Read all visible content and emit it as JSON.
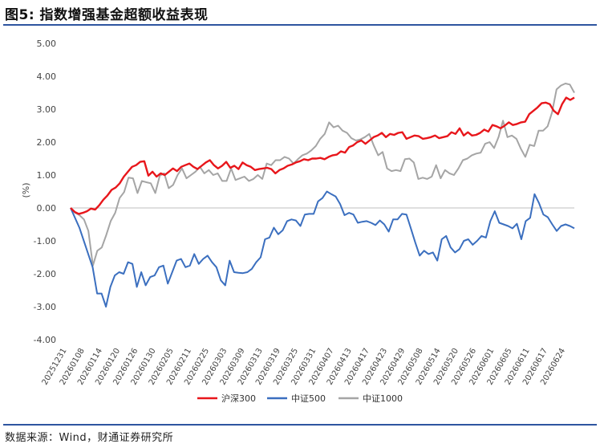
{
  "title": "图5: 指数增强基金超额收益表现",
  "source": "数据来源：Wind，财通证券研究所",
  "chart_data": {
    "type": "line",
    "ylabel": "(%)",
    "ylim": [
      -4,
      5
    ],
    "yticks": [
      5,
      4,
      3,
      2,
      1,
      0,
      -1,
      -2,
      -3,
      -4
    ],
    "ytick_labels": [
      "5.00",
      "4.00",
      "3.00",
      "2.00",
      "1.00",
      "0.00",
      "-1.00",
      "-2.00",
      "-3.00",
      "-4.00"
    ],
    "grid": false,
    "legend_position": "bottom-center",
    "x_tick_labels": [
      "20251231",
      "20260108",
      "20260114",
      "20260120",
      "20260126",
      "20260130",
      "20260205",
      "20260211",
      "20260225",
      "20260303",
      "20260309",
      "20260313",
      "20260319",
      "20260325",
      "20260331",
      "20260407",
      "20260413",
      "20260417",
      "20260423",
      "20260429",
      "20260508",
      "20260514",
      "20260520",
      "20260526",
      "20260601",
      "20260605",
      "20260611",
      "20260617",
      "20260624"
    ],
    "series": [
      {
        "name": "沪深300",
        "color": "#e8161b",
        "values": [
          0,
          -0.12,
          -0.18,
          -0.15,
          -0.1,
          -0.02,
          -0.05,
          0.08,
          0.25,
          0.38,
          0.55,
          0.62,
          0.75,
          0.95,
          1.1,
          1.25,
          1.3,
          1.4,
          1.42,
          0.98,
          1.1,
          0.95,
          1.05,
          1.0,
          1.1,
          1.2,
          1.12,
          1.25,
          1.3,
          1.35,
          1.25,
          1.18,
          1.28,
          1.38,
          1.45,
          1.3,
          1.2,
          1.28,
          1.4,
          1.22,
          1.28,
          1.18,
          1.38,
          1.3,
          1.25,
          1.15,
          1.18,
          1.2,
          1.22,
          1.18,
          1.05,
          1.15,
          1.2,
          1.28,
          1.32,
          1.38,
          1.42,
          1.48,
          1.45,
          1.5,
          1.5,
          1.52,
          1.48,
          1.55,
          1.6,
          1.62,
          1.72,
          1.68,
          1.85,
          1.9,
          2.0,
          2.05,
          1.95,
          2.05,
          2.15,
          2.2,
          2.28,
          2.15,
          2.25,
          2.22,
          2.28,
          2.3,
          2.1,
          2.15,
          2.2,
          2.18,
          2.1,
          2.12,
          2.15,
          2.2,
          2.12,
          2.15,
          2.18,
          2.3,
          2.25,
          2.42,
          2.2,
          2.3,
          2.2,
          2.22,
          2.28,
          2.38,
          2.32,
          2.52,
          2.48,
          2.42,
          2.5,
          2.6,
          2.52,
          2.55,
          2.6,
          2.62,
          2.85,
          2.95,
          3.05,
          3.18,
          3.2,
          3.15,
          2.95,
          2.85,
          3.15,
          3.35,
          3.28,
          3.35
        ]
      },
      {
        "name": "中证500",
        "color": "#3b6fbf",
        "values": [
          0,
          -0.3,
          -0.6,
          -1.0,
          -1.4,
          -1.8,
          -2.6,
          -2.6,
          -3.0,
          -2.4,
          -2.05,
          -1.95,
          -2.0,
          -1.65,
          -1.7,
          -2.4,
          -1.95,
          -2.35,
          -2.1,
          -2.05,
          -1.8,
          -1.75,
          -2.3,
          -1.95,
          -1.6,
          -1.55,
          -1.8,
          -1.75,
          -1.4,
          -1.7,
          -1.55,
          -1.45,
          -1.65,
          -1.8,
          -2.2,
          -2.35,
          -1.6,
          -1.95,
          -1.97,
          -1.98,
          -1.95,
          -1.85,
          -1.65,
          -1.5,
          -0.95,
          -0.9,
          -0.6,
          -0.8,
          -0.68,
          -0.4,
          -0.35,
          -0.38,
          -0.55,
          -0.2,
          -0.18,
          -0.18,
          0.2,
          0.3,
          0.5,
          0.42,
          0.35,
          0.12,
          -0.22,
          -0.15,
          -0.2,
          -0.45,
          -0.42,
          -0.4,
          -0.45,
          -0.52,
          -0.38,
          -0.5,
          -0.72,
          -0.35,
          -0.35,
          -0.18,
          -0.2,
          -0.62,
          -1.05,
          -1.45,
          -1.3,
          -1.4,
          -1.35,
          -1.6,
          -0.95,
          -0.85,
          -1.2,
          -1.35,
          -1.25,
          -1.0,
          -0.95,
          -1.12,
          -1.0,
          -0.85,
          -0.9,
          -0.4,
          -0.1,
          -0.45,
          -0.5,
          -0.55,
          -0.62,
          -0.48,
          -0.95,
          -0.4,
          -0.3,
          0.42,
          0.15,
          -0.2,
          -0.28,
          -0.5,
          -0.7,
          -0.55,
          -0.5,
          -0.55,
          -0.62
        ]
      },
      {
        "name": "中证1000",
        "color": "#a5a5a5",
        "values": [
          0,
          -0.15,
          -0.22,
          -0.35,
          -0.7,
          -1.75,
          -1.3,
          -1.2,
          -0.82,
          -0.4,
          -0.15,
          0.3,
          0.48,
          0.92,
          0.9,
          0.45,
          0.82,
          0.78,
          0.75,
          0.45,
          0.98,
          1.05,
          0.6,
          0.7,
          1.0,
          1.2,
          0.9,
          1.0,
          1.1,
          1.25,
          1.05,
          1.15,
          1.0,
          1.05,
          0.82,
          0.82,
          1.2,
          0.85,
          0.9,
          0.95,
          0.82,
          0.88,
          1.0,
          0.88,
          1.35,
          1.3,
          1.45,
          1.45,
          1.55,
          1.5,
          1.35,
          1.48,
          1.6,
          1.65,
          1.75,
          1.88,
          2.1,
          2.25,
          2.6,
          2.45,
          2.5,
          2.35,
          2.28,
          2.12,
          2.05,
          2.08,
          2.15,
          2.25,
          1.9,
          1.6,
          1.7,
          1.2,
          1.12,
          1.15,
          1.12,
          1.48,
          1.5,
          1.38,
          0.88,
          0.92,
          0.88,
          0.95,
          1.3,
          0.9,
          1.15,
          1.05,
          1.0,
          1.2,
          1.45,
          1.5,
          1.6,
          1.65,
          1.68,
          1.95,
          2.0,
          1.82,
          2.15,
          2.65,
          2.15,
          2.2,
          2.1,
          1.8,
          1.55,
          1.92,
          1.88,
          2.35,
          2.35,
          2.48,
          2.9,
          3.6,
          3.72,
          3.78,
          3.75,
          3.5
        ]
      }
    ]
  }
}
